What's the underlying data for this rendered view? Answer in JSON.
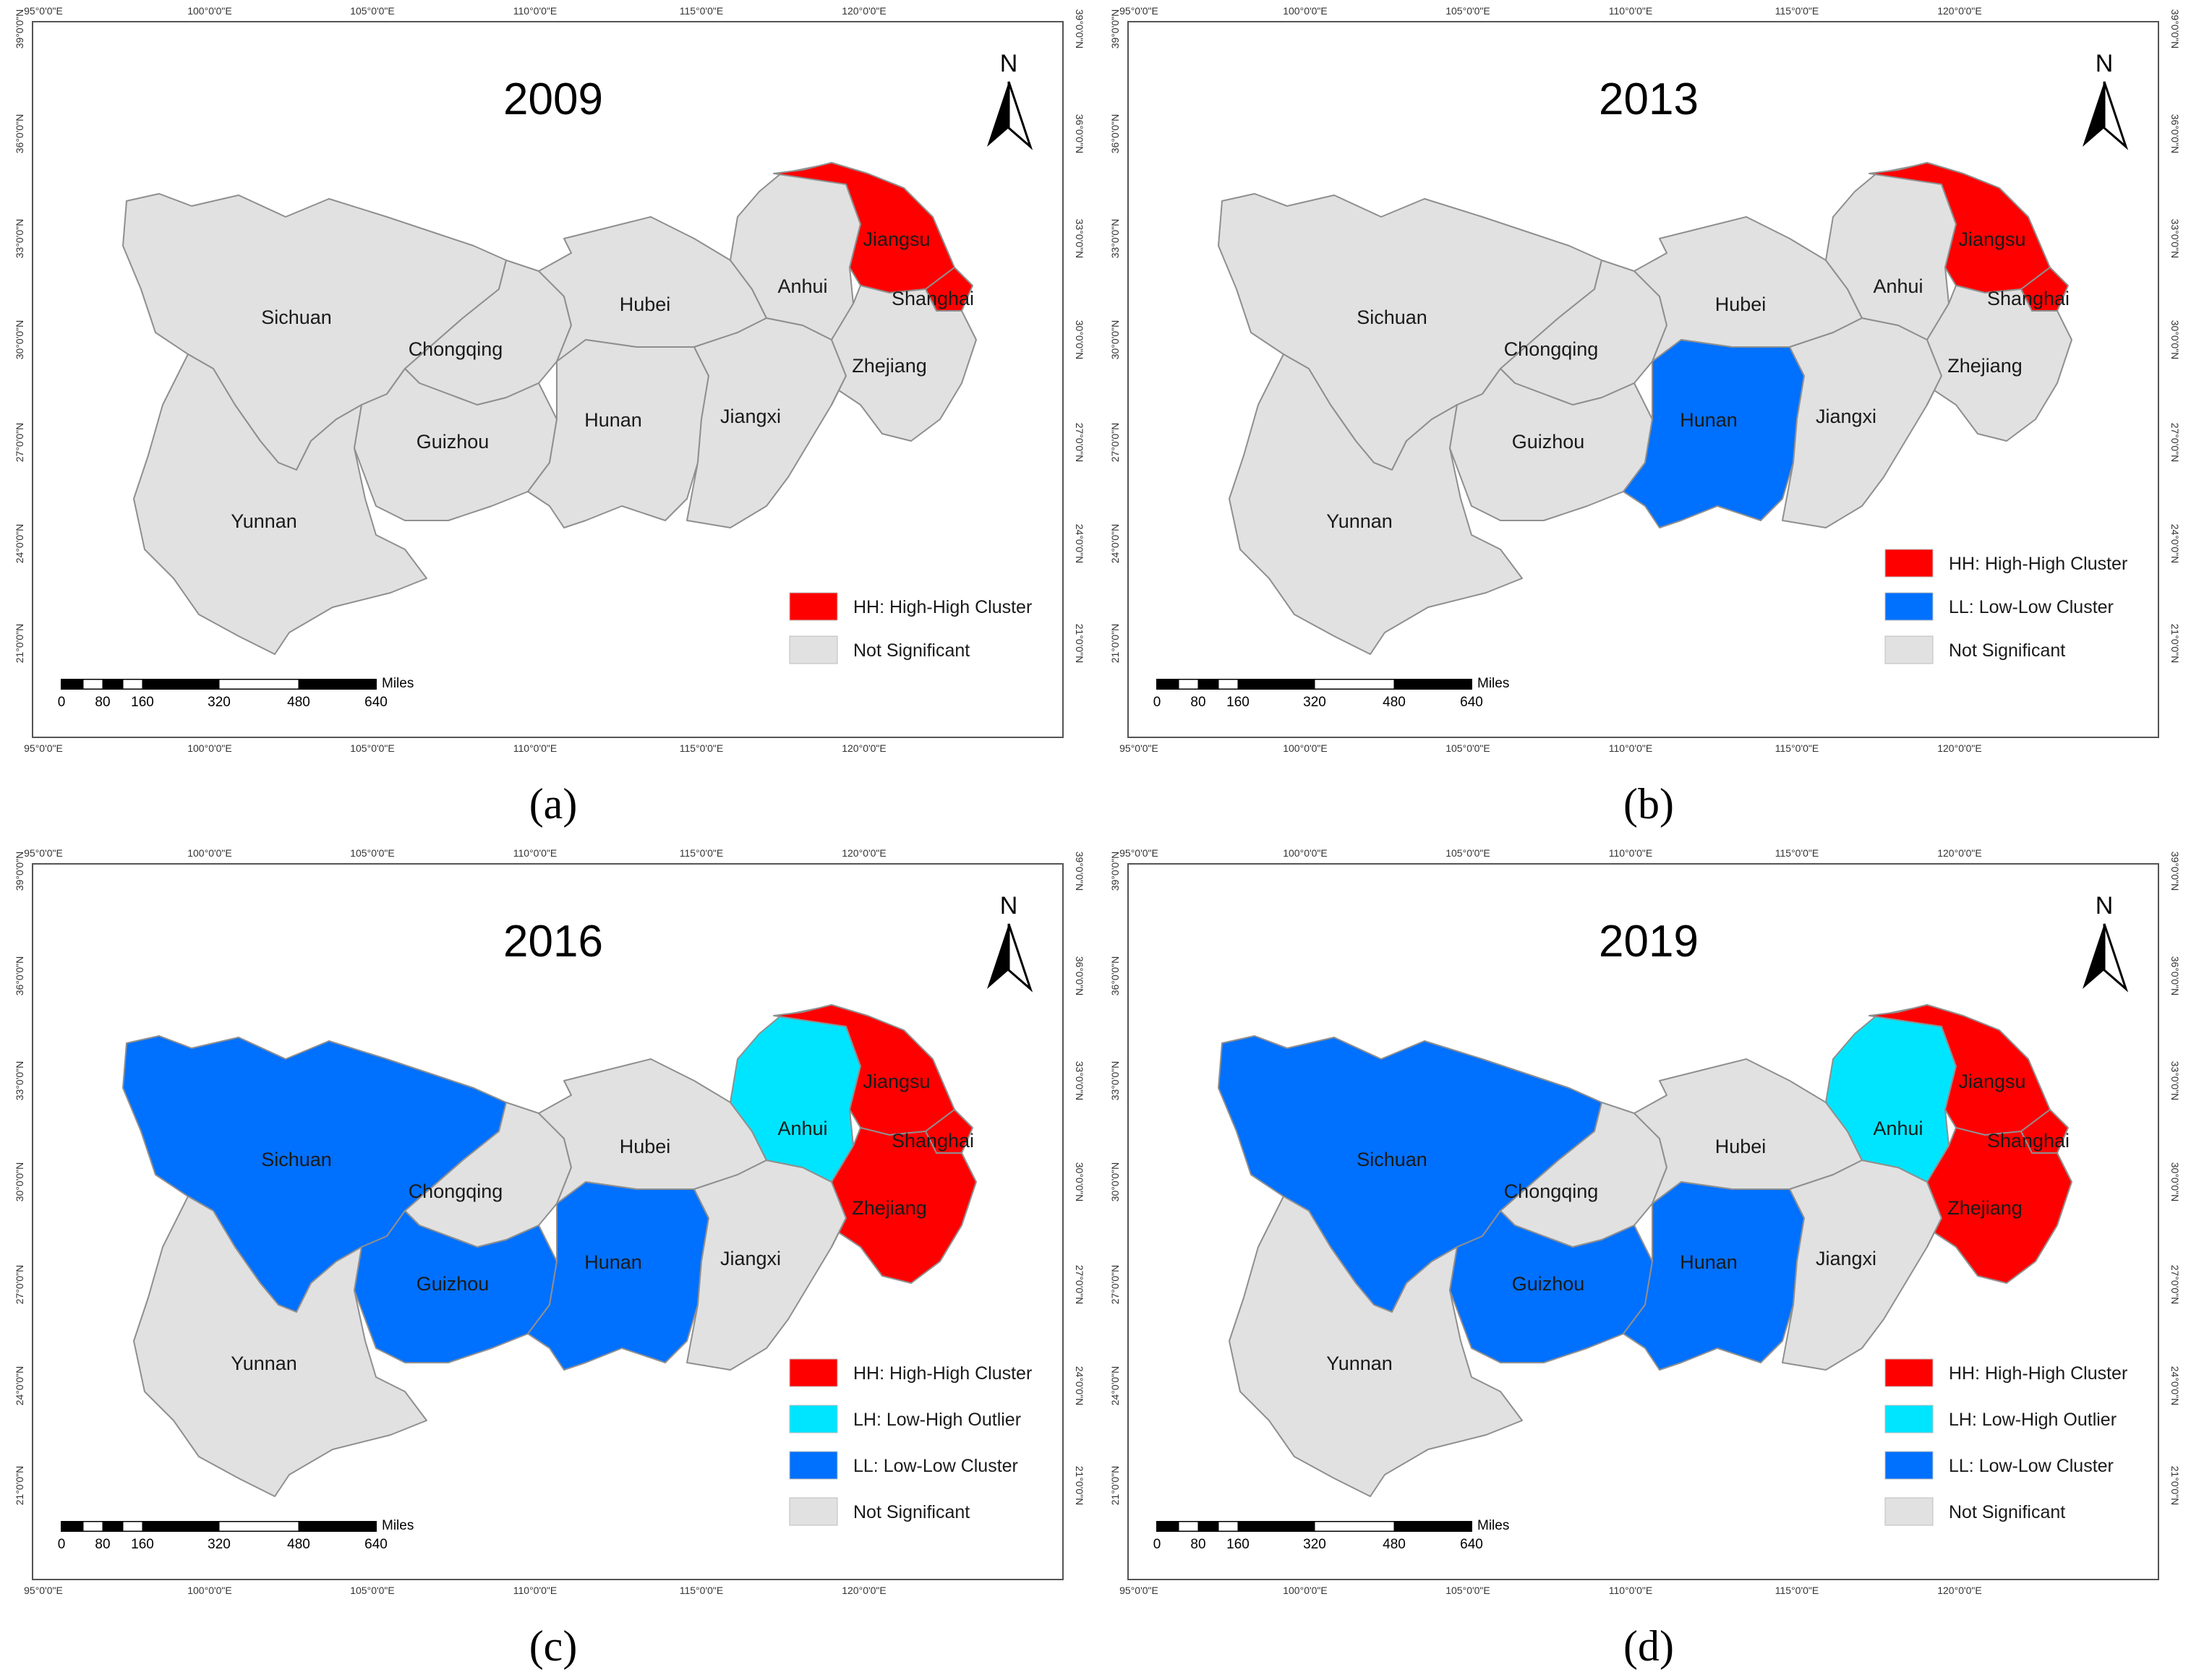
{
  "colors": {
    "HH": "#ff0000",
    "LH": "#00e5ff",
    "LL": "#0070ff",
    "NS": "#e1e1e1",
    "border": "#8f8f8f",
    "frame": "#555555"
  },
  "scalebar": {
    "unit": "Miles",
    "ticks": [
      "0",
      "80",
      "160",
      "320",
      "480",
      "640"
    ]
  },
  "axes": {
    "lon_labels": [
      "95°0'0\"E",
      "100°0'0\"E",
      "105°0'0\"E",
      "110°0'0\"E",
      "115°0'0\"E",
      "120°0'0\"E"
    ],
    "lat_labels": [
      "39°0'0\"N",
      "36°0'0\"N",
      "33°0'0\"N",
      "30°0'0\"N",
      "27°0'0\"N",
      "24°0'0\"N",
      "21°0'0\"N"
    ]
  },
  "north": "N",
  "provinces": [
    "Sichuan",
    "Chongqing",
    "Yunnan",
    "Guizhou",
    "Hubei",
    "Hunan",
    "Jiangxi",
    "Anhui",
    "Jiangsu",
    "Shanghai",
    "Zhejiang"
  ],
  "panels": [
    {
      "caption": "(a)",
      "year": "2009",
      "classes": {
        "Jiangsu": "HH",
        "Shanghai": "HH"
      },
      "legend": [
        {
          "cls": "HH",
          "label": "HH: High-High Cluster"
        },
        {
          "cls": "NS",
          "label": "Not Significant"
        }
      ]
    },
    {
      "caption": "(b)",
      "year": "2013",
      "classes": {
        "Jiangsu": "HH",
        "Shanghai": "HH",
        "Hunan": "LL"
      },
      "legend": [
        {
          "cls": "HH",
          "label": "HH: High-High Cluster"
        },
        {
          "cls": "LL",
          "label": "LL: Low-Low Cluster"
        },
        {
          "cls": "NS",
          "label": "Not Significant"
        }
      ]
    },
    {
      "caption": "(c)",
      "year": "2016",
      "classes": {
        "Jiangsu": "HH",
        "Shanghai": "HH",
        "Zhejiang": "HH",
        "Anhui": "LH",
        "Sichuan": "LL",
        "Guizhou": "LL",
        "Hunan": "LL"
      },
      "legend": [
        {
          "cls": "HH",
          "label": "HH: High-High Cluster"
        },
        {
          "cls": "LH",
          "label": "LH: Low-High Outlier"
        },
        {
          "cls": "LL",
          "label": "LL: Low-Low Cluster"
        },
        {
          "cls": "NS",
          "label": "Not Significant"
        }
      ]
    },
    {
      "caption": "(d)",
      "year": "2019",
      "classes": {
        "Jiangsu": "HH",
        "Shanghai": "HH",
        "Zhejiang": "HH",
        "Anhui": "LH",
        "Sichuan": "LL",
        "Guizhou": "LL",
        "Hunan": "LL"
      },
      "legend": [
        {
          "cls": "HH",
          "label": "HH: High-High Cluster"
        },
        {
          "cls": "LH",
          "label": "LH: Low-High Outlier"
        },
        {
          "cls": "LL",
          "label": "LL: Low-Low Cluster"
        },
        {
          "cls": "NS",
          "label": "Not Significant"
        }
      ]
    }
  ]
}
